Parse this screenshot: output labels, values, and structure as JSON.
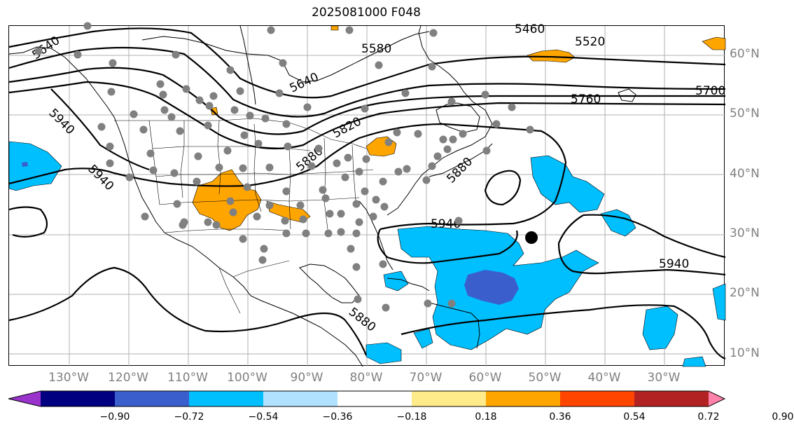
{
  "title": "2025081000 F048",
  "lat_labels": [
    "60°N",
    "50°N",
    "40°N",
    "30°N",
    "20°N",
    "10°N"
  ],
  "lon_labels": [
    "130°W",
    "120°W",
    "110°W",
    "100°W",
    "90°W",
    "80°W",
    "70°W",
    "60°W",
    "50°W",
    "40°W",
    "30°W"
  ],
  "contour_labels": [
    "5460",
    "5520",
    "5580",
    "5640",
    "5640",
    "5700",
    "5760",
    "5820",
    "5880",
    "5880",
    "5880",
    "5940",
    "5940",
    "5940",
    "5940"
  ],
  "colorbar": {
    "ticks": [
      "−0.90",
      "−0.72",
      "−0.54",
      "−0.36",
      "−0.18",
      "0.18",
      "0.36",
      "0.54",
      "0.72",
      "0.90"
    ],
    "colors": [
      "#9933cc",
      "#000080",
      "#3a5fcd",
      "#00bfff",
      "#b0e2ff",
      "#ffffff",
      "#ffeb8a",
      "#ffa500",
      "#ff4500",
      "#b22222",
      "#ff82ab"
    ]
  },
  "colors": {
    "shade_blue": "#00bfff",
    "shade_dark_blue": "#3a5fcd",
    "shade_orange": "#ffa500",
    "station_dot": "#808080",
    "marker": "#000000"
  }
}
